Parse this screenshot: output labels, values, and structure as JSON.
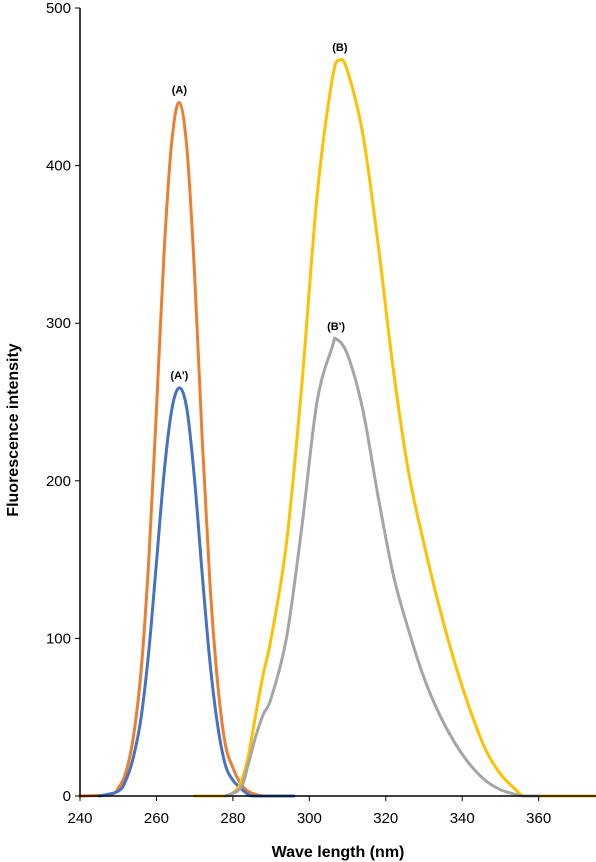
{
  "chart_data": {
    "type": "line",
    "title": "",
    "xlabel": "Wave length (nm)",
    "ylabel": "Fluorescence intensity",
    "xlim": [
      240,
      375
    ],
    "ylim": [
      0,
      500
    ],
    "xticks": [
      240,
      260,
      280,
      300,
      320,
      340,
      360
    ],
    "yticks": [
      0,
      100,
      200,
      300,
      400,
      500
    ],
    "grid": false,
    "legend": "none",
    "series": [
      {
        "name": "(A)",
        "color": "#ED7D31",
        "x": [
          240,
          248,
          250,
          252,
          254,
          256,
          258,
          260,
          262,
          264,
          266,
          268,
          270,
          272,
          274,
          276,
          278,
          280,
          282,
          284,
          286,
          288,
          290
        ],
        "y": [
          0,
          1,
          5,
          15,
          38,
          80,
          150,
          245,
          345,
          415,
          440,
          410,
          330,
          225,
          135,
          72,
          33,
          18,
          8,
          3,
          1,
          0,
          0
        ]
      },
      {
        "name": "(A')",
        "color": "#4472C4",
        "x": [
          245,
          250,
          252,
          254,
          256,
          258,
          260,
          262,
          264,
          266,
          268,
          270,
          272,
          274,
          276,
          278,
          280,
          282,
          284,
          286,
          296
        ],
        "y": [
          0,
          3,
          10,
          25,
          50,
          92,
          148,
          205,
          245,
          259,
          245,
          200,
          140,
          85,
          45,
          20,
          10,
          5,
          1,
          0,
          0
        ]
      },
      {
        "name": "(B)",
        "color": "#FFC000",
        "x": [
          270,
          278,
          280,
          282,
          284,
          286,
          288,
          290,
          294,
          298,
          302,
          306,
          308,
          310,
          314,
          318,
          322,
          326,
          330,
          334,
          338,
          342,
          346,
          350,
          354,
          356,
          360,
          375
        ],
        "y": [
          0,
          0,
          2,
          8,
          25,
          52,
          78,
          100,
          160,
          260,
          380,
          455,
          467,
          460,
          420,
          350,
          270,
          205,
          160,
          120,
          85,
          55,
          30,
          14,
          4,
          0,
          0,
          0
        ]
      },
      {
        "name": "(B')",
        "color": "#A5A5A5",
        "x": [
          278,
          282,
          284,
          286,
          288,
          290,
          294,
          298,
          302,
          306,
          307,
          310,
          314,
          318,
          322,
          326,
          330,
          334,
          338,
          342,
          346,
          350,
          354,
          356,
          360
        ],
        "y": [
          0,
          5,
          20,
          38,
          52,
          62,
          100,
          170,
          250,
          285,
          290,
          280,
          245,
          190,
          140,
          105,
          75,
          52,
          34,
          20,
          10,
          4,
          1,
          0,
          0
        ]
      }
    ]
  }
}
